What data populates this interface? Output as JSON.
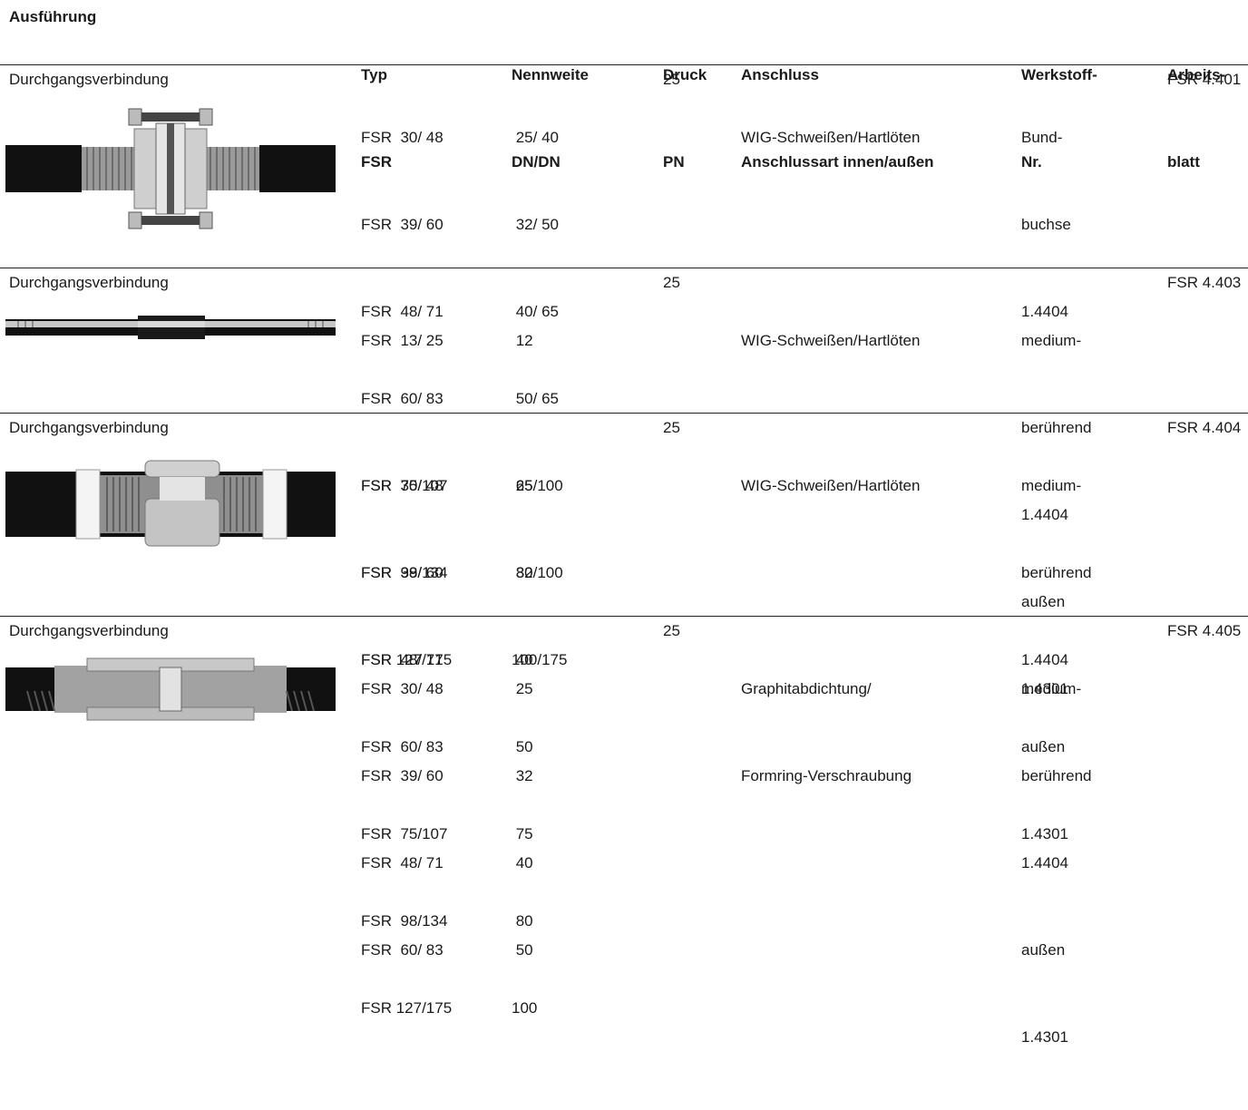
{
  "header": {
    "ausfuehrung": "Ausführung",
    "typ": [
      "Typ",
      "FSR"
    ],
    "nennweite": [
      "Nennweite",
      "DN/DN"
    ],
    "druck": [
      "Druck",
      "PN"
    ],
    "anschluss": [
      "Anschluss",
      "Anschlussart innen/außen"
    ],
    "werkstoff": [
      "Werkstoff-",
      "Nr."
    ],
    "arbeitsblatt": [
      "Arbeits-",
      "blatt"
    ]
  },
  "rows": [
    {
      "ausfuehrung": "Durchgangsverbindung",
      "image": "flange-pipe-connection-image",
      "typ": [
        "FSR  30/ 48",
        "FSR  39/ 60",
        "FSR  48/ 71",
        "FSR  60/ 83",
        "FSR  75/107",
        "FSR  98/134",
        "FSR 127/175"
      ],
      "nennweite": [
        " 25/ 40",
        " 32/ 50",
        " 40/ 65",
        " 50/ 65",
        " 65/100",
        " 80/100",
        "100/175"
      ],
      "druck": "25",
      "anschluss": [
        "WIG-Schweißen/Hartlöten"
      ],
      "werkstoff": [
        "Bund-",
        "buchse",
        "1.4404"
      ],
      "arbeitsblatt": "FSR 4.401"
    },
    {
      "ausfuehrung": "Durchgangsverbindung",
      "image": "slim-pipe-connection-image",
      "typ": [
        "FSR  13/ 25"
      ],
      "nennweite": [
        " 12"
      ],
      "druck": "25",
      "anschluss": [
        "WIG-Schweißen/Hartlöten"
      ],
      "werkstoff": [
        "medium-",
        "berührend",
        "1.4404",
        "außen",
        "1.4301"
      ],
      "arbeitsblatt": "FSR 4.403"
    },
    {
      "ausfuehrung": "Durchgangsverbindung",
      "image": "sleeve-pipe-connection-image",
      "typ": [
        "FSR  30/ 48",
        "FSR  39/ 60",
        "FSR  48/ 71",
        "FSR  60/ 83",
        "FSR  75/107",
        "FSR  98/134",
        "FSR 127/175"
      ],
      "nennweite": [
        " 25",
        " 32",
        " 40",
        " 50",
        " 75",
        " 80",
        "100"
      ],
      "druck": "25",
      "anschluss": [
        "WIG-Schweißen/Hartlöten"
      ],
      "werkstoff": [
        "medium-",
        "berührend",
        "1.4404",
        "außen",
        "1.4301"
      ],
      "arbeitsblatt": "FSR 4.404"
    },
    {
      "ausfuehrung": "Durchgangsverbindung",
      "image": "threaded-pipe-connection-image",
      "typ": [
        "FSR  30/ 48",
        "FSR  39/ 60",
        "FSR  48/ 71",
        "FSR  60/ 83"
      ],
      "nennweite": [
        " 25",
        " 32",
        " 40",
        " 50"
      ],
      "druck": "25",
      "anschluss": [
        "Graphitabdichtung/",
        "Formring-Verschraubung"
      ],
      "werkstoff": [
        "medium-",
        "berührend",
        "1.4404",
        "außen",
        "1.4301"
      ],
      "arbeitsblatt": "FSR 4.405"
    }
  ]
}
